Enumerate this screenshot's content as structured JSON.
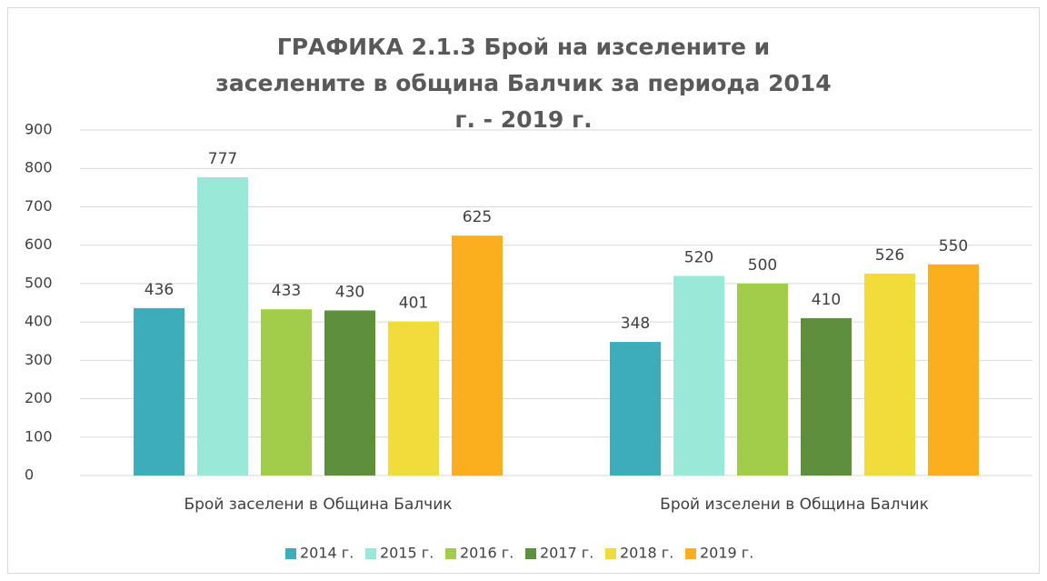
{
  "chart_data": {
    "type": "bar",
    "title": "ГРАФИКА 2.1.3 Брой на изселените и заселените в община Балчик за периода 2014 г. - 2019 г.",
    "categories": [
      "Брой заселени в Община Балчик",
      "Брой изселени в Община Балчик"
    ],
    "series": [
      {
        "name": "2014 г.",
        "color": "#3eadbb",
        "values": [
          436,
          348
        ]
      },
      {
        "name": "2015 г.",
        "color": "#99e8d8",
        "values": [
          777,
          520
        ]
      },
      {
        "name": "2016 г.",
        "color": "#a2cd4a",
        "values": [
          433,
          500
        ]
      },
      {
        "name": "2017 г.",
        "color": "#5e8f3c",
        "values": [
          430,
          410
        ]
      },
      {
        "name": "2018 г.",
        "color": "#f2dc3c",
        "values": [
          401,
          526
        ]
      },
      {
        "name": "2019 г.",
        "color": "#fbaf1e",
        "values": [
          625,
          550
        ]
      }
    ],
    "ylim": [
      0,
      900
    ],
    "yticks": [
      0,
      100,
      200,
      300,
      400,
      500,
      600,
      700,
      800,
      900
    ],
    "grid": true,
    "legend": "bottom"
  }
}
